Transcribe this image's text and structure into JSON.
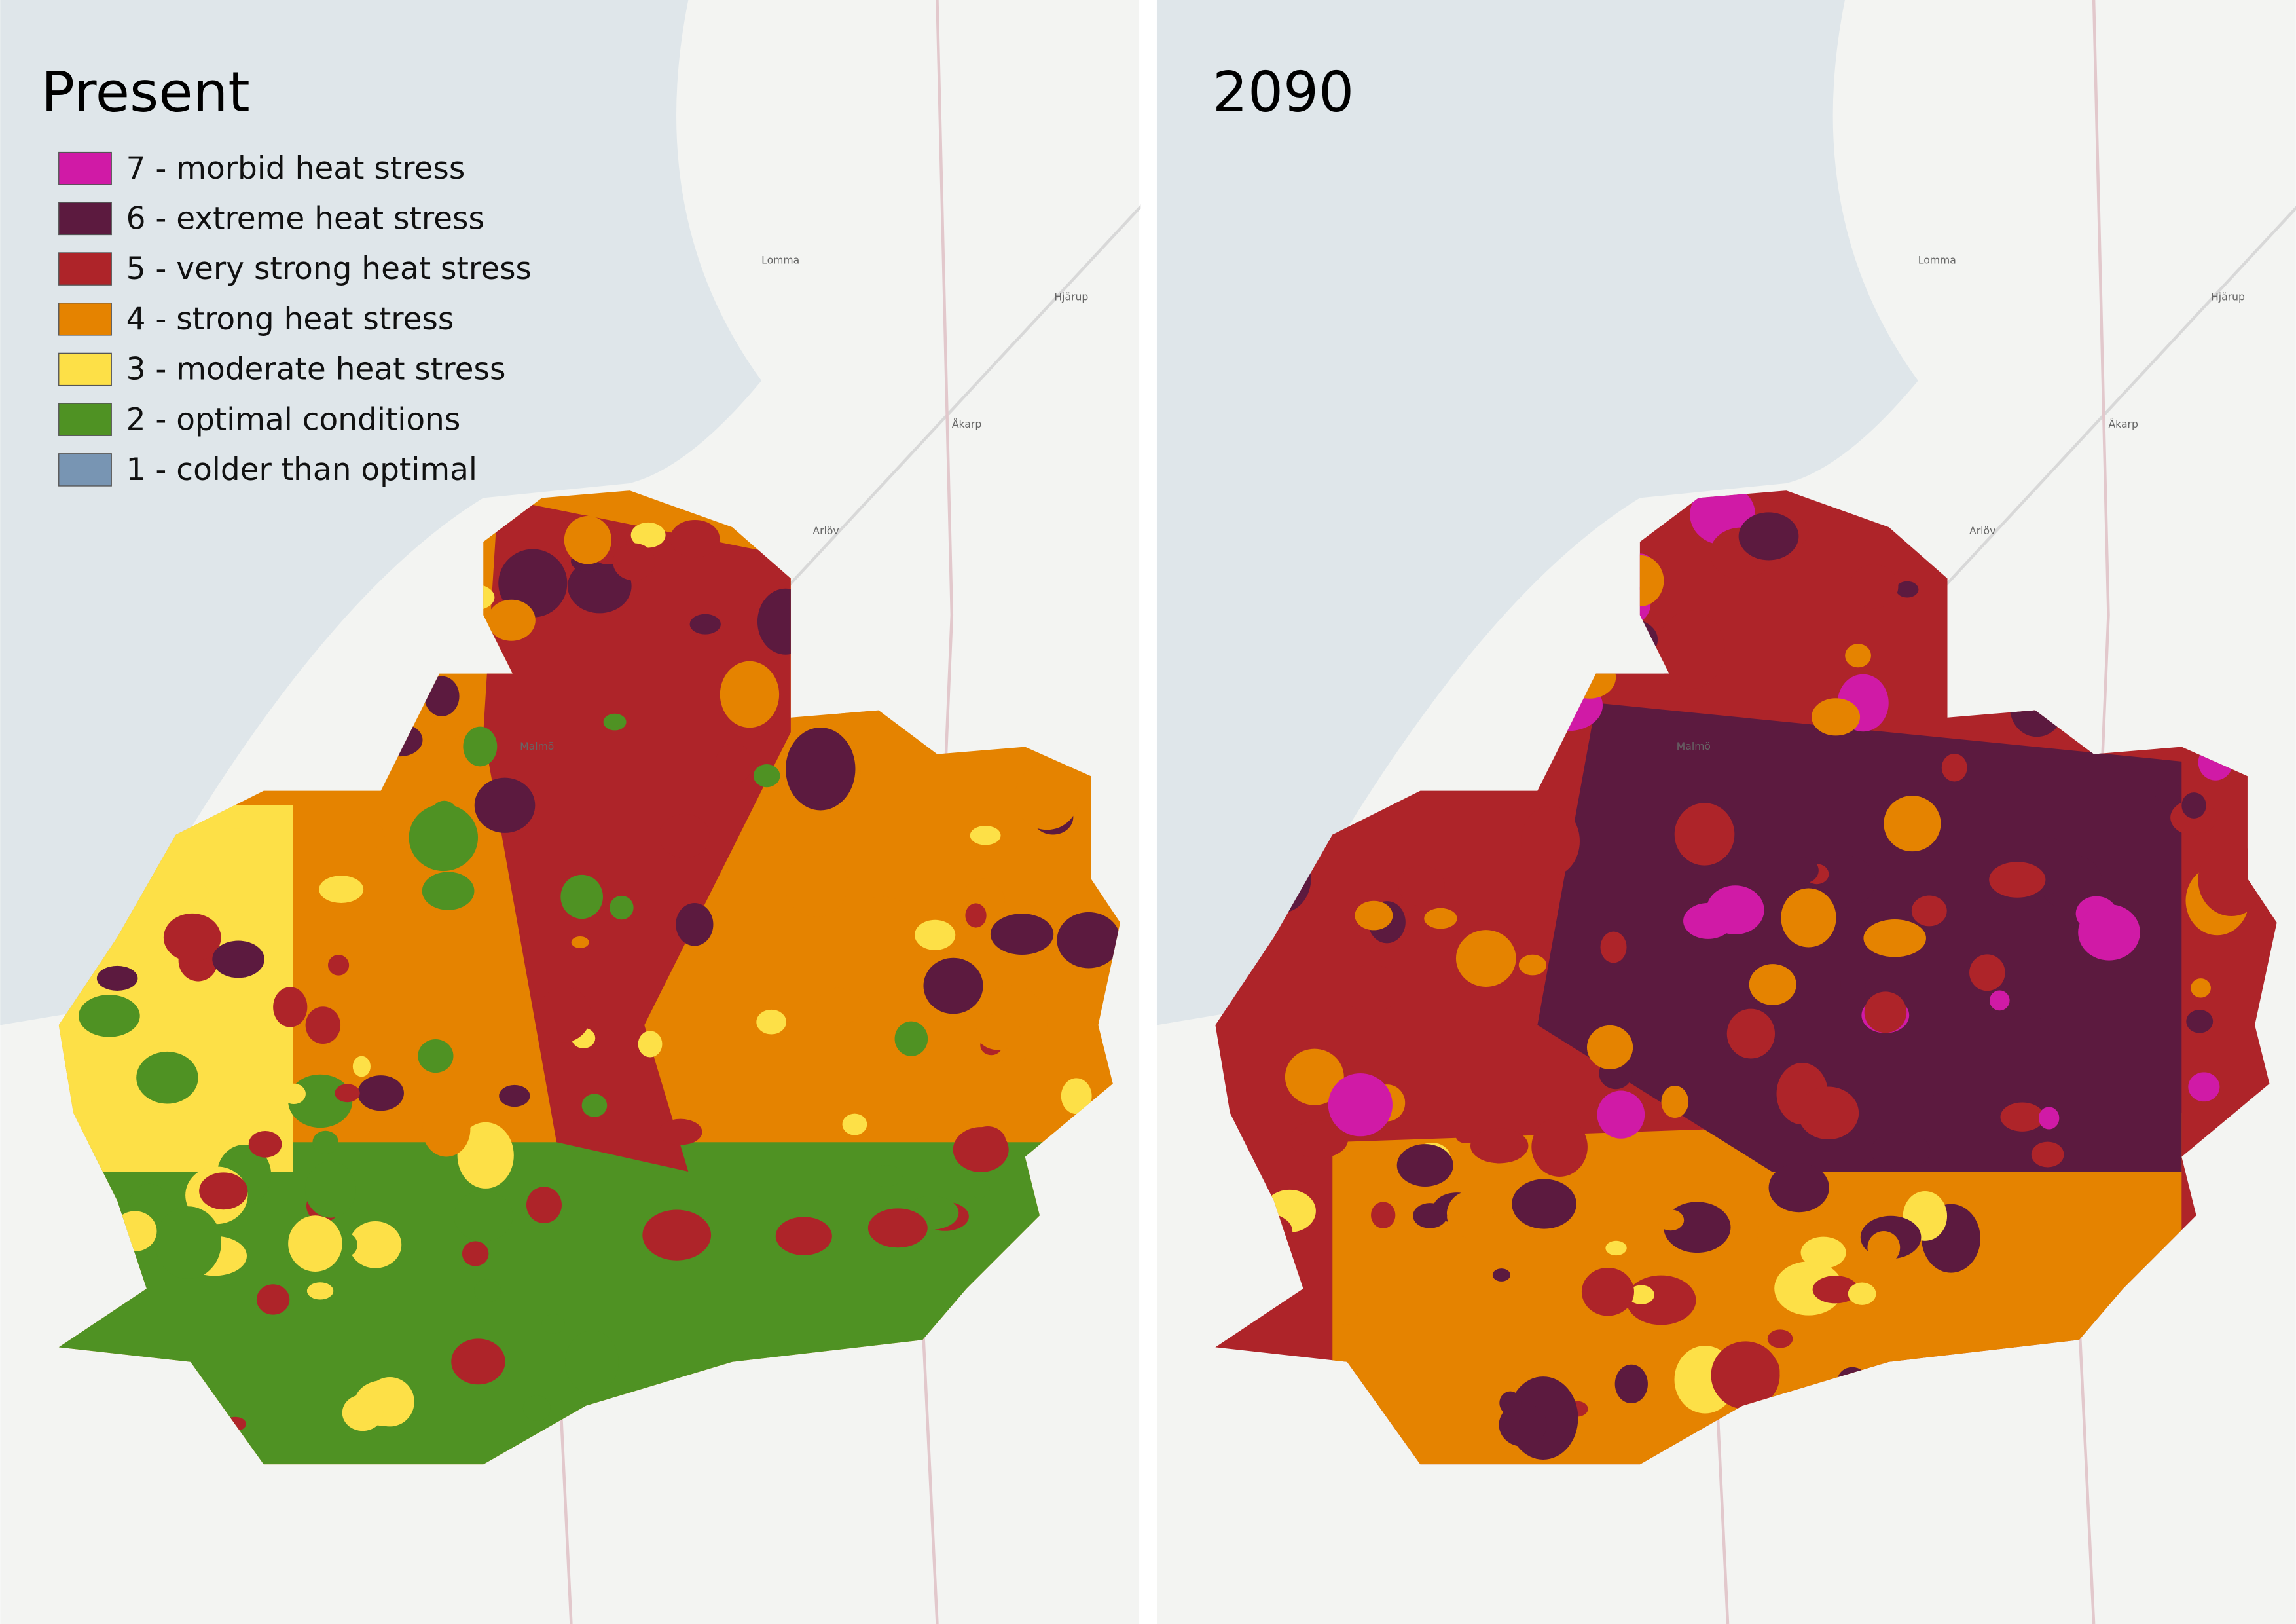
{
  "panels": [
    {
      "title": "Present",
      "places": [
        "Lomma",
        "Arlöv",
        "Åkarp",
        "Hjärup",
        "Malmö"
      ]
    },
    {
      "title": "2090",
      "places": [
        "Lomma",
        "Arlöv",
        "Åkarp",
        "Hjärup",
        "Malmö"
      ]
    }
  ],
  "legend": [
    {
      "label": "7 - morbid heat stress",
      "color": "#d01aa6"
    },
    {
      "label": "6 - extreme heat stress",
      "color": "#5c1a3f"
    },
    {
      "label": "5 - very strong heat stress",
      "color": "#ae2429"
    },
    {
      "label": "4 - strong heat stress",
      "color": "#e58300"
    },
    {
      "label": "3 - moderate heat stress",
      "color": "#fde047"
    },
    {
      "label": "2 - optimal conditions",
      "color": "#4f9223"
    },
    {
      "label": "1 - colder than optimal",
      "color": "#7895b3"
    }
  ]
}
